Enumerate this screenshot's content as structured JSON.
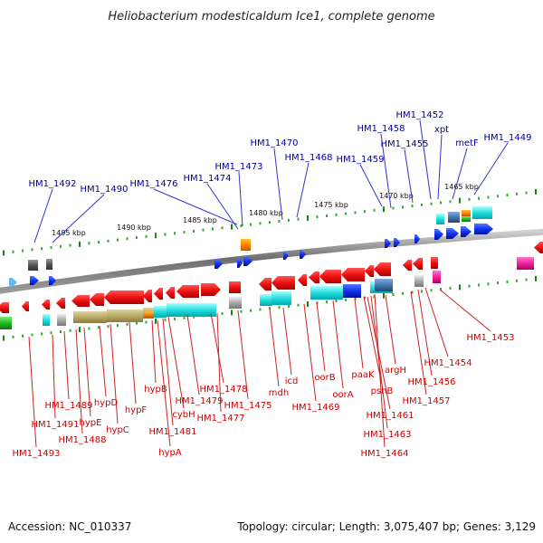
{
  "title": "Heliobacterium modesticaldum Ice1, complete genome",
  "footer": {
    "accession": "Accession: NC_010337",
    "topology": "Topology: circular; Length: 3,075,407 bp; Genes: 3,129"
  },
  "scale_labels": [
    "1495 kbp",
    "1490 kbp",
    "1485 kbp",
    "1480 kbp",
    "1475 kbp",
    "1470 kbp",
    "1465 kbp"
  ],
  "top_labels": [
    "HM1_1492",
    "HM1_1490",
    "HM1_1476",
    "HM1_1474",
    "HM1_1473",
    "HM1_1470",
    "HM1_1468",
    "HM1_1459",
    "HM1_1458",
    "HM1_1455",
    "HM1_1452",
    "xpt",
    "metF",
    "HM1_1449"
  ],
  "bottom_labels": [
    "HM1_1493",
    "HM1_1491",
    "HM1_1489",
    "HM1_1488",
    "hypE",
    "hypD",
    "hypC",
    "hypF",
    "hypB",
    "hypA",
    "HM1_1481",
    "cybH",
    "HM1_1479",
    "HM1_1478",
    "HM1_1477",
    "HM1_1475",
    "mdh",
    "icd",
    "HM1_1469",
    "oorB",
    "oorA",
    "paaK",
    "pshB",
    "argH",
    "HM1_1461",
    "HM1_1463",
    "HM1_1464",
    "HM1_1457",
    "HM1_1456",
    "HM1_1454",
    "HM1_1453"
  ],
  "colors": {
    "top_label": "#000099",
    "bottom_label": "#cc0000",
    "backbone": "#777777",
    "tick": "#33aa33",
    "gene_red": "#ee1111",
    "gene_blue": "#1133dd",
    "gene_cyan": "#22dddd",
    "gene_olive": "#bbaa66"
  }
}
